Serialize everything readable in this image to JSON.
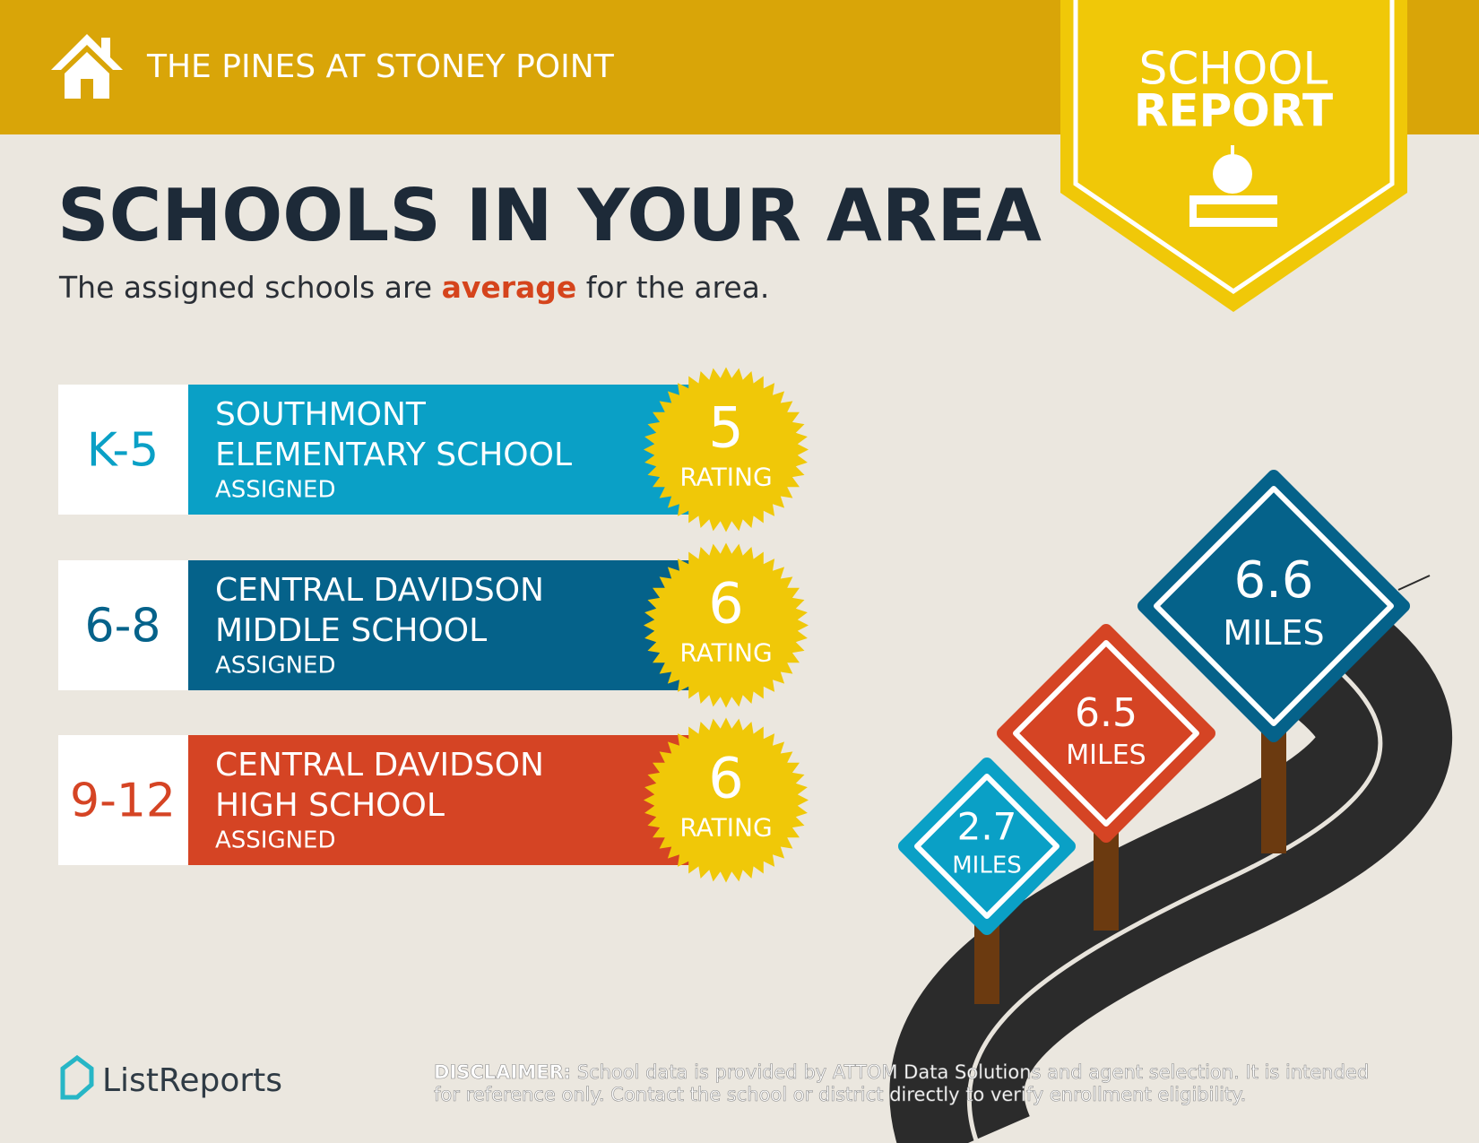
{
  "header": {
    "title": "THE PINES AT STONEY POINT"
  },
  "badge": {
    "line1": "SCHOOL",
    "line2": "REPORT"
  },
  "heading": "SCHOOLS IN YOUR AREA",
  "subtitle": {
    "before": "The assigned schools are ",
    "highlight": "average",
    "after": " for the area."
  },
  "schools": [
    {
      "grade": "K-5",
      "name_line1": "SOUTHMONT",
      "name_line2": "ELEMENTARY SCHOOL",
      "status": "ASSIGNED",
      "rating": 5,
      "rating_label": "RATING"
    },
    {
      "grade": "6-8",
      "name_line1": "CENTRAL DAVIDSON",
      "name_line2": "MIDDLE SCHOOL",
      "status": "ASSIGNED",
      "rating": 6,
      "rating_label": "RATING"
    },
    {
      "grade": "9-12",
      "name_line1": "CENTRAL DAVIDSON",
      "name_line2": "HIGH SCHOOL",
      "status": "ASSIGNED",
      "rating": 6,
      "rating_label": "RATING"
    }
  ],
  "signs": [
    {
      "distance": 2.7,
      "unit": "MILES"
    },
    {
      "distance": 6.5,
      "unit": "MILES"
    },
    {
      "distance": 6.6,
      "unit": "MILES"
    }
  ],
  "footer": {
    "brand": "ListReports",
    "disclaimer_label": "DISCLAIMER:",
    "disclaimer_line1": " School data is provided by ATTOM Data Solutions and agent selection. It is intended",
    "disclaimer_line2": "for reference only. Contact the school or district directly to verify enrollment eligibility."
  }
}
